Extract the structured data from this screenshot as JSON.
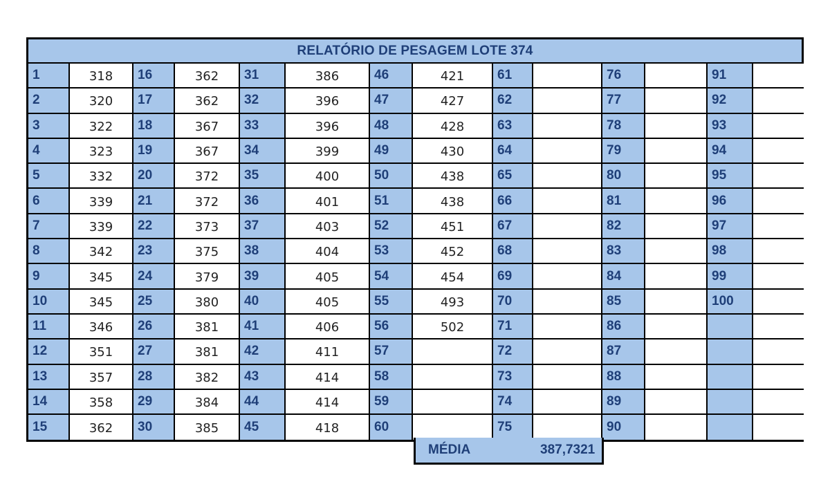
{
  "title": "RELATÓRIO DE PESAGEM LOTE 374",
  "colors": {
    "header_fill": "#a7c6ea",
    "header_text": "#1f3f78",
    "border": "#000000"
  },
  "columns": [
    {
      "entries": [
        {
          "n": "1",
          "v": "318"
        },
        {
          "n": "2",
          "v": "320"
        },
        {
          "n": "3",
          "v": "322"
        },
        {
          "n": "4",
          "v": "323"
        },
        {
          "n": "5",
          "v": "332"
        },
        {
          "n": "6",
          "v": "339"
        },
        {
          "n": "7",
          "v": "339"
        },
        {
          "n": "8",
          "v": "342"
        },
        {
          "n": "9",
          "v": "345"
        },
        {
          "n": "10",
          "v": "345"
        },
        {
          "n": "11",
          "v": "346"
        },
        {
          "n": "12",
          "v": "351"
        },
        {
          "n": "13",
          "v": "357"
        },
        {
          "n": "14",
          "v": "358"
        },
        {
          "n": "15",
          "v": "362"
        }
      ]
    },
    {
      "entries": [
        {
          "n": "16",
          "v": "362"
        },
        {
          "n": "17",
          "v": "362"
        },
        {
          "n": "18",
          "v": "367"
        },
        {
          "n": "19",
          "v": "367"
        },
        {
          "n": "20",
          "v": "372"
        },
        {
          "n": "21",
          "v": "372"
        },
        {
          "n": "22",
          "v": "373"
        },
        {
          "n": "23",
          "v": "375"
        },
        {
          "n": "24",
          "v": "379"
        },
        {
          "n": "25",
          "v": "380"
        },
        {
          "n": "26",
          "v": "381"
        },
        {
          "n": "27",
          "v": "381"
        },
        {
          "n": "28",
          "v": "382"
        },
        {
          "n": "29",
          "v": "384"
        },
        {
          "n": "30",
          "v": "385"
        }
      ]
    },
    {
      "entries": [
        {
          "n": "31",
          "v": "386"
        },
        {
          "n": "32",
          "v": "396"
        },
        {
          "n": "33",
          "v": "396"
        },
        {
          "n": "34",
          "v": "399"
        },
        {
          "n": "35",
          "v": "400"
        },
        {
          "n": "36",
          "v": "401"
        },
        {
          "n": "37",
          "v": "403"
        },
        {
          "n": "38",
          "v": "404"
        },
        {
          "n": "39",
          "v": "405"
        },
        {
          "n": "40",
          "v": "405"
        },
        {
          "n": "41",
          "v": "406"
        },
        {
          "n": "42",
          "v": "411"
        },
        {
          "n": "43",
          "v": "414"
        },
        {
          "n": "44",
          "v": "414"
        },
        {
          "n": "45",
          "v": "418"
        }
      ]
    },
    {
      "entries": [
        {
          "n": "46",
          "v": "421"
        },
        {
          "n": "47",
          "v": "427"
        },
        {
          "n": "48",
          "v": "428"
        },
        {
          "n": "49",
          "v": "430"
        },
        {
          "n": "50",
          "v": "438"
        },
        {
          "n": "51",
          "v": "438"
        },
        {
          "n": "52",
          "v": "451"
        },
        {
          "n": "53",
          "v": "452"
        },
        {
          "n": "54",
          "v": "454"
        },
        {
          "n": "55",
          "v": "493"
        },
        {
          "n": "56",
          "v": "502"
        },
        {
          "n": "57",
          "v": ""
        },
        {
          "n": "58",
          "v": ""
        },
        {
          "n": "59",
          "v": ""
        },
        {
          "n": "60",
          "v": ""
        }
      ]
    },
    {
      "entries": [
        {
          "n": "61",
          "v": ""
        },
        {
          "n": "62",
          "v": ""
        },
        {
          "n": "63",
          "v": ""
        },
        {
          "n": "64",
          "v": ""
        },
        {
          "n": "65",
          "v": ""
        },
        {
          "n": "66",
          "v": ""
        },
        {
          "n": "67",
          "v": ""
        },
        {
          "n": "68",
          "v": ""
        },
        {
          "n": "69",
          "v": ""
        },
        {
          "n": "70",
          "v": ""
        },
        {
          "n": "71",
          "v": ""
        },
        {
          "n": "72",
          "v": ""
        },
        {
          "n": "73",
          "v": ""
        },
        {
          "n": "74",
          "v": ""
        },
        {
          "n": "75",
          "v": ""
        }
      ]
    },
    {
      "entries": [
        {
          "n": "76",
          "v": ""
        },
        {
          "n": "77",
          "v": ""
        },
        {
          "n": "78",
          "v": ""
        },
        {
          "n": "79",
          "v": ""
        },
        {
          "n": "80",
          "v": ""
        },
        {
          "n": "81",
          "v": ""
        },
        {
          "n": "82",
          "v": ""
        },
        {
          "n": "83",
          "v": ""
        },
        {
          "n": "84",
          "v": ""
        },
        {
          "n": "85",
          "v": ""
        },
        {
          "n": "86",
          "v": ""
        },
        {
          "n": "87",
          "v": ""
        },
        {
          "n": "88",
          "v": ""
        },
        {
          "n": "89",
          "v": ""
        },
        {
          "n": "90",
          "v": ""
        }
      ]
    },
    {
      "entries": [
        {
          "n": "91",
          "v": ""
        },
        {
          "n": "92",
          "v": ""
        },
        {
          "n": "93",
          "v": ""
        },
        {
          "n": "94",
          "v": ""
        },
        {
          "n": "95",
          "v": ""
        },
        {
          "n": "96",
          "v": ""
        },
        {
          "n": "97",
          "v": ""
        },
        {
          "n": "98",
          "v": ""
        },
        {
          "n": "99",
          "v": ""
        },
        {
          "n": "100",
          "v": ""
        },
        {
          "n": "",
          "v": ""
        },
        {
          "n": "",
          "v": ""
        },
        {
          "n": "",
          "v": ""
        },
        {
          "n": "",
          "v": ""
        },
        {
          "n": "",
          "v": ""
        }
      ]
    }
  ],
  "summary": {
    "label": "MÉDIA",
    "value": "387,7321"
  }
}
